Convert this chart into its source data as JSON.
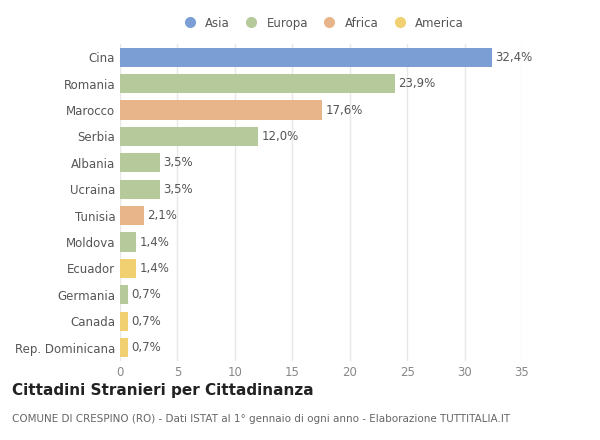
{
  "categories": [
    "Cina",
    "Romania",
    "Marocco",
    "Serbia",
    "Albania",
    "Ucraina",
    "Tunisia",
    "Moldova",
    "Ecuador",
    "Germania",
    "Canada",
    "Rep. Dominicana"
  ],
  "values": [
    32.4,
    23.9,
    17.6,
    12.0,
    3.5,
    3.5,
    2.1,
    1.4,
    1.4,
    0.7,
    0.7,
    0.7
  ],
  "labels": [
    "32,4%",
    "23,9%",
    "17,6%",
    "12,0%",
    "3,5%",
    "3,5%",
    "2,1%",
    "1,4%",
    "1,4%",
    "0,7%",
    "0,7%",
    "0,7%"
  ],
  "colors": [
    "#7b9fd4",
    "#b5c99a",
    "#e8b48a",
    "#b5c99a",
    "#b5c99a",
    "#b5c99a",
    "#e8b48a",
    "#b5c99a",
    "#f0d070",
    "#b5c99a",
    "#f0d070",
    "#f0d070"
  ],
  "legend_labels": [
    "Asia",
    "Europa",
    "Africa",
    "America"
  ],
  "legend_colors": [
    "#7b9fd4",
    "#b5c99a",
    "#e8b48a",
    "#f0d070"
  ],
  "title": "Cittadini Stranieri per Cittadinanza",
  "subtitle": "COMUNE DI CRESPINO (RO) - Dati ISTAT al 1° gennaio di ogni anno - Elaborazione TUTTITALIA.IT",
  "xlim": [
    0,
    35
  ],
  "xticks": [
    0,
    5,
    10,
    15,
    20,
    25,
    30,
    35
  ],
  "bg_color": "#ffffff",
  "grid_color": "#e8e8e8",
  "title_fontsize": 11,
  "subtitle_fontsize": 7.5,
  "label_fontsize": 8.5,
  "tick_fontsize": 8.5,
  "ytick_fontsize": 8.5
}
